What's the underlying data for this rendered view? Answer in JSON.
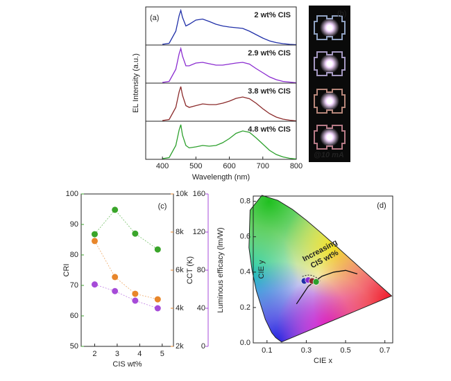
{
  "chart_data": [
    {
      "type": "line",
      "panel": "(a)",
      "xlabel": "Wavelength (nm)",
      "ylabel": "EL Intensity (a.u.)",
      "x": [
        400,
        420,
        440,
        450,
        455,
        460,
        470,
        480,
        500,
        520,
        540,
        560,
        580,
        600,
        620,
        640,
        660,
        680,
        700,
        720,
        740,
        760,
        780,
        800
      ],
      "xlim": [
        350,
        800
      ],
      "xticks": [
        400,
        500,
        600,
        700,
        800
      ],
      "ylim": [
        0,
        1.1
      ],
      "series": [
        {
          "name": "2 wt% CIS",
          "color": "#1f2fa8",
          "values": [
            0.02,
            0.05,
            0.4,
            0.85,
            1.0,
            0.8,
            0.55,
            0.6,
            0.72,
            0.75,
            0.68,
            0.6,
            0.55,
            0.52,
            0.5,
            0.48,
            0.4,
            0.3,
            0.2,
            0.12,
            0.07,
            0.04,
            0.02,
            0.01
          ]
        },
        {
          "name": "2.9 wt% CIS",
          "color": "#8a2bd0",
          "values": [
            0.02,
            0.05,
            0.4,
            0.85,
            1.0,
            0.78,
            0.5,
            0.5,
            0.58,
            0.6,
            0.56,
            0.52,
            0.52,
            0.55,
            0.58,
            0.6,
            0.55,
            0.42,
            0.3,
            0.18,
            0.1,
            0.05,
            0.03,
            0.01
          ]
        },
        {
          "name": "3.8 wt% CIS",
          "color": "#8b2a2a",
          "values": [
            0.02,
            0.05,
            0.4,
            0.85,
            1.0,
            0.75,
            0.45,
            0.4,
            0.45,
            0.5,
            0.48,
            0.48,
            0.52,
            0.58,
            0.66,
            0.7,
            0.65,
            0.52,
            0.36,
            0.22,
            0.12,
            0.06,
            0.03,
            0.01
          ]
        },
        {
          "name": "4.8 wt% CIS",
          "color": "#2ca02c",
          "values": [
            0.02,
            0.05,
            0.4,
            0.85,
            1.0,
            0.7,
            0.4,
            0.33,
            0.36,
            0.4,
            0.38,
            0.4,
            0.48,
            0.6,
            0.75,
            0.82,
            0.78,
            0.62,
            0.44,
            0.26,
            0.14,
            0.07,
            0.03,
            0.01
          ]
        }
      ]
    },
    {
      "type": "image",
      "panel": "(b)",
      "caption": "@10 mA"
    },
    {
      "type": "scatter",
      "panel": "(c)",
      "xlabel": "CIS wt%",
      "x": [
        2,
        2.9,
        3.8,
        4.8
      ],
      "xlim": [
        1.4,
        5.5
      ],
      "xticks": [
        2,
        3,
        4,
        5
      ],
      "ylim": [
        50,
        100
      ],
      "yticks": [
        50,
        60,
        70,
        80,
        90,
        100
      ],
      "y2lim": [
        2000,
        10000
      ],
      "y2ticks": [
        {
          "value": 2000,
          "label": "2k"
        },
        {
          "value": 4000,
          "label": "4k"
        },
        {
          "value": 6000,
          "label": "6k"
        },
        {
          "value": 8000,
          "label": "8k"
        },
        {
          "value": 10000,
          "label": "10k"
        }
      ],
      "y3lim": [
        0,
        160
      ],
      "y3ticks": [
        0,
        40,
        80,
        120,
        160
      ],
      "series": [
        {
          "name": "CRI",
          "color": "#3aa52a",
          "values": [
            86.8,
            94.8,
            87,
            81.8
          ]
        },
        {
          "name": "CCT (K)",
          "color": "#e8862a",
          "axis": "y2",
          "values": [
            7530,
            5640,
            4760,
            4470
          ]
        },
        {
          "name": "Luminous efficacy (lm/W)",
          "color": "#a64bd8",
          "axis": "y3",
          "values": [
            65,
            58,
            48,
            40
          ]
        }
      ]
    },
    {
      "type": "chromaticity",
      "panel": "(d)",
      "xlabel": "CIE x",
      "ylabel": "CIE y",
      "annotation": [
        "Increasing",
        "CIS wt%"
      ],
      "xlim": [
        0.03,
        0.74
      ],
      "xticks": [
        0.1,
        0.3,
        0.5,
        0.7
      ],
      "ylim": [
        0,
        0.83
      ],
      "yticks": [
        {
          "value": 0,
          "label": "0.0"
        },
        0.2,
        0.4,
        0.6,
        0.8
      ],
      "x": [
        0.29,
        0.31,
        0.33,
        0.35
      ],
      "values": [
        0.35,
        0.355,
        0.35,
        0.345
      ],
      "colors": [
        "#1f2fa8",
        "#8a2bd0",
        "#8b2a2a",
        "#2ca02c"
      ]
    }
  ]
}
